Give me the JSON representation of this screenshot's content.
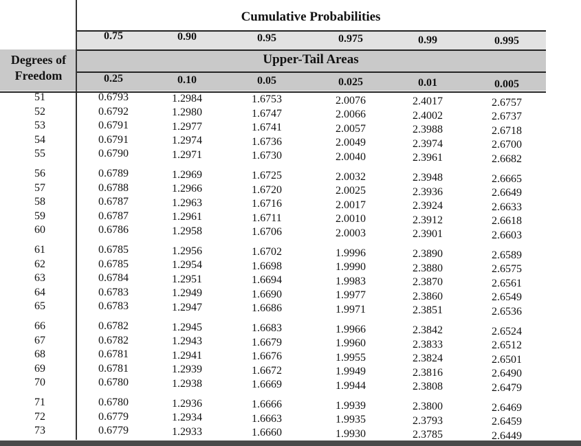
{
  "header": {
    "title": "Cumulative Probabilities",
    "cumulative": [
      "0.75",
      "0.90",
      "0.95",
      "0.975",
      "0.99",
      "0.995"
    ],
    "upper_tail_title": "Upper-Tail Areas",
    "upper_tail": [
      "0.25",
      "0.10",
      "0.05",
      "0.025",
      "0.01",
      "0.005"
    ],
    "df_label": [
      "Degrees of",
      "Freedom"
    ]
  },
  "table": {
    "rows": [
      {
        "df": "51",
        "values": [
          "0.6793",
          "1.2984",
          "1.6753",
          "2.0076",
          "2.4017",
          "2.6757"
        ]
      },
      {
        "df": "52",
        "values": [
          "0.6792",
          "1.2980",
          "1.6747",
          "2.0066",
          "2.4002",
          "2.6737"
        ]
      },
      {
        "df": "53",
        "values": [
          "0.6791",
          "1.2977",
          "1.6741",
          "2.0057",
          "2.3988",
          "2.6718"
        ]
      },
      {
        "df": "54",
        "values": [
          "0.6791",
          "1.2974",
          "1.6736",
          "2.0049",
          "2.3974",
          "2.6700"
        ]
      },
      {
        "df": "55",
        "values": [
          "0.6790",
          "1.2971",
          "1.6730",
          "2.0040",
          "2.3961",
          "2.6682"
        ]
      },
      {
        "df": "56",
        "values": [
          "0.6789",
          "1.2969",
          "1.6725",
          "2.0032",
          "2.3948",
          "2.6665"
        ]
      },
      {
        "df": "57",
        "values": [
          "0.6788",
          "1.2966",
          "1.6720",
          "2.0025",
          "2.3936",
          "2.6649"
        ]
      },
      {
        "df": "58",
        "values": [
          "0.6787",
          "1.2963",
          "1.6716",
          "2.0017",
          "2.3924",
          "2.6633"
        ]
      },
      {
        "df": "59",
        "values": [
          "0.6787",
          "1.2961",
          "1.6711",
          "2.0010",
          "2.3912",
          "2.6618"
        ]
      },
      {
        "df": "60",
        "values": [
          "0.6786",
          "1.2958",
          "1.6706",
          "2.0003",
          "2.3901",
          "2.6603"
        ]
      },
      {
        "df": "61",
        "values": [
          "0.6785",
          "1.2956",
          "1.6702",
          "1.9996",
          "2.3890",
          "2.6589"
        ]
      },
      {
        "df": "62",
        "values": [
          "0.6785",
          "1.2954",
          "1.6698",
          "1.9990",
          "2.3880",
          "2.6575"
        ]
      },
      {
        "df": "63",
        "values": [
          "0.6784",
          "1.2951",
          "1.6694",
          "1.9983",
          "2.3870",
          "2.6561"
        ]
      },
      {
        "df": "64",
        "values": [
          "0.6783",
          "1.2949",
          "1.6690",
          "1.9977",
          "2.3860",
          "2.6549"
        ]
      },
      {
        "df": "65",
        "values": [
          "0.6783",
          "1.2947",
          "1.6686",
          "1.9971",
          "2.3851",
          "2.6536"
        ]
      },
      {
        "df": "66",
        "values": [
          "0.6782",
          "1.2945",
          "1.6683",
          "1.9966",
          "2.3842",
          "2.6524"
        ]
      },
      {
        "df": "67",
        "values": [
          "0.6782",
          "1.2943",
          "1.6679",
          "1.9960",
          "2.3833",
          "2.6512"
        ]
      },
      {
        "df": "68",
        "values": [
          "0.6781",
          "1.2941",
          "1.6676",
          "1.9955",
          "2.3824",
          "2.6501"
        ]
      },
      {
        "df": "69",
        "values": [
          "0.6781",
          "1.2939",
          "1.6672",
          "1.9949",
          "2.3816",
          "2.6490"
        ]
      },
      {
        "df": "70",
        "values": [
          "0.6780",
          "1.2938",
          "1.6669",
          "1.9944",
          "2.3808",
          "2.6479"
        ]
      },
      {
        "df": "71",
        "values": [
          "0.6780",
          "1.2936",
          "1.6666",
          "1.9939",
          "2.3800",
          "2.6469"
        ]
      },
      {
        "df": "72",
        "values": [
          "0.6779",
          "1.2934",
          "1.6663",
          "1.9935",
          "2.3793",
          "2.6459"
        ]
      },
      {
        "df": "73",
        "values": [
          "0.6779",
          "1.2933",
          "1.6660",
          "1.9930",
          "2.3785",
          "2.6449"
        ]
      }
    ]
  }
}
